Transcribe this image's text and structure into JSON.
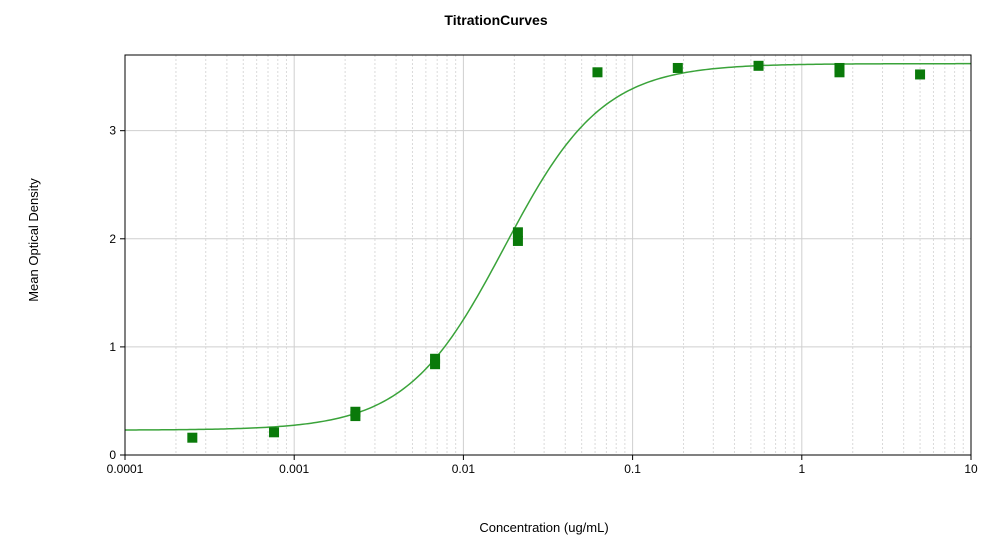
{
  "chart_data": {
    "type": "scatter",
    "title": "TitrationCurves",
    "xlabel": "Concentration (ug/mL)",
    "ylabel": "Mean Optical Density",
    "x_scale": "log",
    "xlim": [
      0.0001,
      10
    ],
    "ylim": [
      0,
      3.7
    ],
    "x_ticks": [
      0.0001,
      0.001,
      0.01,
      0.1,
      1,
      10
    ],
    "x_tick_labels": [
      "0.0001",
      "0.001",
      "0.01",
      "0.1",
      "1",
      "10"
    ],
    "y_ticks": [
      0,
      1,
      2,
      3
    ],
    "y_tick_labels": [
      "0",
      "1",
      "2",
      "3"
    ],
    "grid": true,
    "legend": "none",
    "series": [
      {
        "kind": "points",
        "color": "#0a7a0a",
        "points": [
          {
            "x": 0.00025,
            "y": 0.16
          },
          {
            "x": 0.00076,
            "y": 0.21
          },
          {
            "x": 0.0023,
            "y": 0.36
          },
          {
            "x": 0.0023,
            "y": 0.4
          },
          {
            "x": 0.0068,
            "y": 0.84
          },
          {
            "x": 0.0068,
            "y": 0.89
          },
          {
            "x": 0.021,
            "y": 1.98
          },
          {
            "x": 0.021,
            "y": 2.06
          },
          {
            "x": 0.062,
            "y": 3.54
          },
          {
            "x": 0.185,
            "y": 3.58
          },
          {
            "x": 0.555,
            "y": 3.6
          },
          {
            "x": 1.67,
            "y": 3.54
          },
          {
            "x": 1.67,
            "y": 3.58
          },
          {
            "x": 5.0,
            "y": 3.52
          }
        ]
      },
      {
        "kind": "curve",
        "color": "#3aa33a",
        "fit": {
          "model": "4PL",
          "bottom": 0.23,
          "top": 3.62,
          "ec50": 0.0175,
          "hill": 1.5
        }
      }
    ]
  }
}
